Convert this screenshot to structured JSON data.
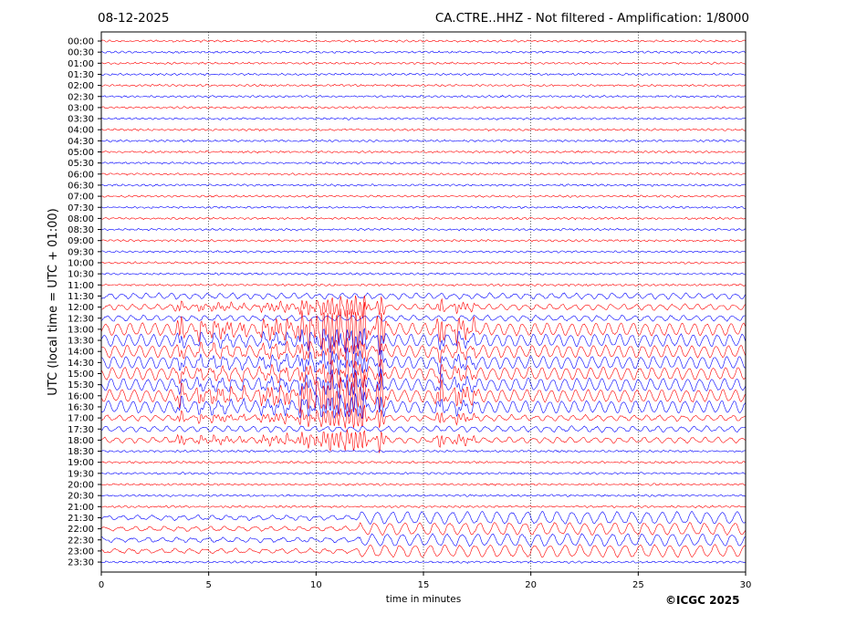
{
  "header": {
    "date": "08-12-2025",
    "title": "CA.CTRE..HHZ - Not filtered - Amplification: 1/8000"
  },
  "footer": {
    "copyright": "©ICGC 2025"
  },
  "chart_data": {
    "type": "line",
    "xlabel": "time in minutes",
    "ylabel": "UTC (local time = UTC + 01:00)",
    "xlim": [
      0,
      30
    ],
    "xticks": [
      "0",
      "5",
      "10",
      "15",
      "20",
      "25",
      "30"
    ],
    "rows": [
      "00:00",
      "00:30",
      "01:00",
      "01:30",
      "02:00",
      "02:30",
      "03:00",
      "03:30",
      "04:00",
      "04:30",
      "05:00",
      "05:30",
      "06:00",
      "06:30",
      "07:00",
      "07:30",
      "08:00",
      "08:30",
      "09:00",
      "09:30",
      "10:00",
      "10:30",
      "11:00",
      "11:30",
      "12:00",
      "12:30",
      "13:00",
      "13:30",
      "14:00",
      "14:30",
      "15:00",
      "15:30",
      "16:00",
      "16:30",
      "17:00",
      "17:30",
      "18:00",
      "18:30",
      "19:00",
      "19:30",
      "20:00",
      "20:30",
      "21:00",
      "21:30",
      "22:00",
      "22:30",
      "23:00",
      "23:30"
    ],
    "grid": "vertical dotted lines at x-ticks",
    "trace_colors": [
      "#ff0000",
      "#0000ff"
    ],
    "notes_on_activity": {
      "quiet_hours": "00:00-12:00 low amplitude background noise",
      "strong_arrivals_rows": [
        "13:00",
        "13:30",
        "14:00",
        "14:30",
        "15:00",
        "15:30",
        "16:00",
        "16:30"
      ],
      "large_spikes_minutes": [
        3.7,
        4.6,
        5.2,
        5.6,
        6.0,
        6.6,
        7.5,
        7.9,
        8.3,
        8.6,
        9.3,
        9.7,
        10.0,
        10.3,
        10.7,
        11.1,
        11.4,
        11.8,
        12.2,
        13.0,
        15.8,
        16.6,
        17.0,
        17.3
      ]
    }
  }
}
